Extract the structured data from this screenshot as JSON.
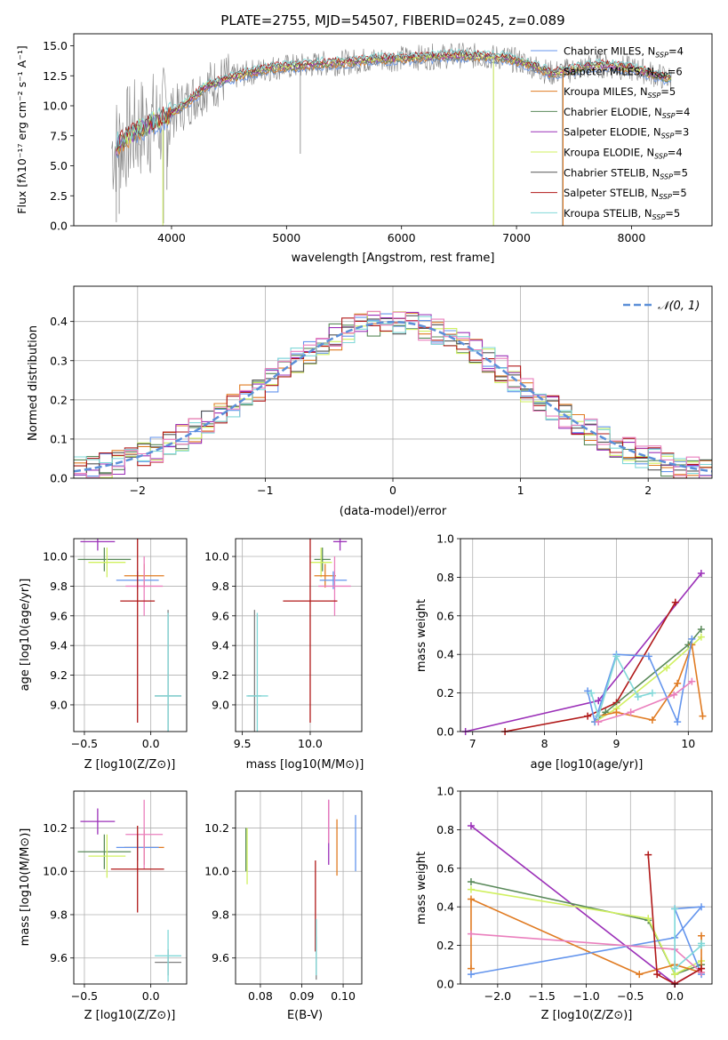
{
  "chart_data": [
    {
      "type": "line",
      "title": "PLATE=2755, MJD=54507, FIBERID=0245, z=0.089",
      "xlabel": "wavelength [Angstrom, rest frame]",
      "ylabel": "Flux [fλ10⁻¹⁷ erg cm⁻² s⁻¹ A⁻¹]",
      "xlim": [
        3150,
        8700
      ],
      "ylim": [
        0,
        16
      ],
      "xticks": [
        4000,
        5000,
        6000,
        7000,
        8000
      ],
      "yticks": [
        0.0,
        2.5,
        5.0,
        7.5,
        10.0,
        12.5,
        15.0
      ],
      "grid": false,
      "legend_position": "right",
      "observed": {
        "color": "#808080",
        "x": [
          3500,
          3700,
          3900,
          4100,
          4300,
          4500,
          4700,
          4900,
          5100,
          5300,
          5500,
          5700,
          5900,
          6100,
          6300,
          6500,
          6700,
          6900,
          7100,
          7300,
          7500,
          7700,
          7900,
          8100,
          8300
        ],
        "values": [
          6.5,
          8.0,
          8.8,
          10.0,
          11.6,
          12.3,
          12.8,
          13.2,
          13.3,
          13.5,
          13.6,
          13.8,
          13.9,
          14.0,
          14.1,
          14.2,
          14.1,
          14.0,
          13.5,
          12.7,
          13.0,
          13.4,
          13.2,
          12.9,
          12.3
        ]
      },
      "series": [
        {
          "name": "Chabrier MILES, N_SSP=4",
          "color": "#6495ed"
        },
        {
          "name": "Salpeter MILES, N_SSP=6",
          "color": "#808080"
        },
        {
          "name": "Kroupa MILES, N_SSP=5",
          "color": "#e07b22"
        },
        {
          "name": "Chabrier ELODIE, N_SSP=4",
          "color": "#5a8a5a"
        },
        {
          "name": "Salpeter ELODIE, N_SSP=3",
          "color": "#9b30b8"
        },
        {
          "name": "Kroupa ELODIE, N_SSP=4",
          "color": "#d0f060"
        },
        {
          "name": "Chabrier STELIB, N_SSP=5",
          "color": "#555555"
        },
        {
          "name": "Salpeter STELIB, N_SSP=5",
          "color": "#b01818"
        },
        {
          "name": "Kroupa STELIB, N_SSP=5",
          "color": "#80d8d8"
        }
      ]
    },
    {
      "type": "line",
      "xlabel": "(data-model)/error",
      "ylabel": "Normed distribution",
      "xlim": [
        -2.5,
        2.5
      ],
      "ylim": [
        0,
        0.49
      ],
      "xticks": [
        -2,
        -1,
        0,
        1,
        2
      ],
      "yticks": [
        0.0,
        0.1,
        0.2,
        0.3,
        0.4
      ],
      "grid": true,
      "legend_position": "top-right",
      "gaussian": {
        "name": "𝒩(0, 1)",
        "color": "#5b8fd8"
      },
      "bin_width": 0.1
    },
    {
      "type": "scatter",
      "xlabel": "Z [log10(Z/Z⊙)]",
      "ylabel": "age  [log10(age/yr)]",
      "xlim": [
        -0.58,
        0.27
      ],
      "ylim": [
        8.82,
        10.12
      ],
      "xticks": [
        -0.5,
        0.0
      ],
      "yticks": [
        9.0,
        9.2,
        9.4,
        9.6,
        9.8,
        10.0
      ],
      "grid": true,
      "points": [
        {
          "color": "#9b30b8",
          "x": -0.4,
          "y": 10.1,
          "xerr": 0.13,
          "yerr": 0.06
        },
        {
          "color": "#5a8a5a",
          "x": -0.35,
          "y": 9.98,
          "xerr": 0.2,
          "yerr": 0.08
        },
        {
          "color": "#d0f060",
          "x": -0.33,
          "y": 9.96,
          "xerr": 0.14,
          "yerr": 0.1
        },
        {
          "color": "#e07b22",
          "x": -0.05,
          "y": 9.87,
          "xerr": 0.15,
          "yerr": 0.08
        },
        {
          "color": "#6495ed",
          "x": -0.1,
          "y": 9.84,
          "xerr": 0.16,
          "yerr": 0.06
        },
        {
          "color": "#ea7fbd",
          "x": -0.05,
          "y": 9.8,
          "xerr": 0.14,
          "yerr": 0.2
        },
        {
          "color": "#b01818",
          "x": -0.1,
          "y": 9.7,
          "xerr": 0.13,
          "yerr": 0.82
        },
        {
          "color": "#808080",
          "x": 0.13,
          "y": 9.06,
          "xerr": 0.1,
          "yerr": 0.58
        },
        {
          "color": "#80d8d8",
          "x": 0.13,
          "y": 9.06,
          "xerr": 0.1,
          "yerr": 0.56
        }
      ]
    },
    {
      "type": "scatter",
      "xlabel": "mass [log10(M/M⊙)]",
      "xlim": [
        9.45,
        10.38
      ],
      "ylim": [
        8.82,
        10.12
      ],
      "xticks": [
        9.5,
        10.0
      ],
      "yticks": [
        9.0,
        9.2,
        9.4,
        9.6,
        9.8,
        10.0
      ],
      "grid": true,
      "points": [
        {
          "color": "#9b30b8",
          "x": 10.22,
          "y": 10.1,
          "xerr": 0.05,
          "yerr": 0.06
        },
        {
          "color": "#5a8a5a",
          "x": 10.09,
          "y": 9.98,
          "xerr": 0.06,
          "yerr": 0.08
        },
        {
          "color": "#d0f060",
          "x": 10.08,
          "y": 9.96,
          "xerr": 0.08,
          "yerr": 0.1
        },
        {
          "color": "#e07b22",
          "x": 10.11,
          "y": 9.87,
          "xerr": 0.08,
          "yerr": 0.08
        },
        {
          "color": "#6495ed",
          "x": 10.17,
          "y": 9.84,
          "xerr": 0.1,
          "yerr": 0.06
        },
        {
          "color": "#ea7fbd",
          "x": 10.18,
          "y": 9.8,
          "xerr": 0.12,
          "yerr": 0.2
        },
        {
          "color": "#b01818",
          "x": 10.0,
          "y": 9.7,
          "xerr": 0.2,
          "yerr": 0.82
        },
        {
          "color": "#808080",
          "x": 9.59,
          "y": 9.06,
          "xerr": 0.05,
          "yerr": 0.58
        },
        {
          "color": "#80d8d8",
          "x": 9.61,
          "y": 9.06,
          "xerr": 0.08,
          "yerr": 0.56
        }
      ]
    },
    {
      "type": "line",
      "xlabel": "age  [log10(age/yr)]",
      "ylabel": "mass weight",
      "xlim": [
        6.83,
        10.33
      ],
      "ylim": [
        0,
        1.0
      ],
      "xticks": [
        7,
        8,
        9,
        10
      ],
      "yticks": [
        0.0,
        0.2,
        0.4,
        0.6,
        0.8,
        1.0
      ],
      "grid": true,
      "series": [
        {
          "color": "#9b30b8",
          "x": [
            6.9,
            8.75,
            10.18
          ],
          "values": [
            0.0,
            0.16,
            0.82
          ]
        },
        {
          "color": "#b01818",
          "x": [
            7.45,
            8.6,
            9.0,
            9.82
          ],
          "values": [
            0.0,
            0.08,
            0.15,
            0.67
          ]
        },
        {
          "color": "#5a8a5a",
          "x": [
            8.7,
            8.85,
            10.0,
            10.18
          ],
          "values": [
            0.05,
            0.1,
            0.45,
            0.53
          ]
        },
        {
          "color": "#d0f060",
          "x": [
            8.7,
            9.0,
            9.7,
            10.18
          ],
          "values": [
            0.05,
            0.12,
            0.33,
            0.49
          ]
        },
        {
          "color": "#e07b22",
          "x": [
            8.75,
            9.0,
            9.5,
            9.85,
            10.05,
            10.2
          ],
          "values": [
            0.08,
            0.1,
            0.06,
            0.25,
            0.45,
            0.08
          ]
        },
        {
          "color": "#6495ed",
          "x": [
            8.6,
            8.7,
            9.0,
            9.45,
            9.85,
            10.05
          ],
          "values": [
            0.21,
            0.05,
            0.4,
            0.39,
            0.05,
            0.48
          ]
        },
        {
          "color": "#ea7fbd",
          "x": [
            8.75,
            9.2,
            9.8,
            10.05
          ],
          "values": [
            0.05,
            0.1,
            0.19,
            0.26
          ]
        },
        {
          "color": "#80d8d8",
          "x": [
            8.65,
            8.75,
            9.0,
            9.3,
            9.5
          ],
          "values": [
            0.2,
            0.08,
            0.39,
            0.18,
            0.2
          ]
        }
      ]
    },
    {
      "type": "scatter",
      "xlabel": "Z [log10(Z/Z⊙)]",
      "ylabel": "mass [log10(M/M⊙)]",
      "xlim": [
        -0.58,
        0.27
      ],
      "ylim": [
        9.48,
        10.37
      ],
      "xticks": [
        -0.5,
        0.0
      ],
      "yticks": [
        9.6,
        9.8,
        10.0,
        10.2
      ],
      "grid": true,
      "points": [
        {
          "color": "#9b30b8",
          "x": -0.4,
          "y": 10.23,
          "xerr": 0.13,
          "yerr": 0.06
        },
        {
          "color": "#5a8a5a",
          "x": -0.35,
          "y": 10.09,
          "xerr": 0.2,
          "yerr": 0.08
        },
        {
          "color": "#d0f060",
          "x": -0.33,
          "y": 10.07,
          "xerr": 0.14,
          "yerr": 0.1
        },
        {
          "color": "#e07b22",
          "x": -0.05,
          "y": 10.11,
          "xerr": 0.15,
          "yerr": 0.08
        },
        {
          "color": "#6495ed",
          "x": -0.1,
          "y": 10.11,
          "xerr": 0.16,
          "yerr": 0.06
        },
        {
          "color": "#ea7fbd",
          "x": -0.05,
          "y": 10.17,
          "xerr": 0.14,
          "yerr": 0.16
        },
        {
          "color": "#b01818",
          "x": -0.1,
          "y": 10.01,
          "xerr": 0.2,
          "yerr": 0.2
        },
        {
          "color": "#808080",
          "x": 0.13,
          "y": 9.58,
          "xerr": 0.1,
          "yerr": 0.06
        },
        {
          "color": "#80d8d8",
          "x": 0.13,
          "y": 9.61,
          "xerr": 0.1,
          "yerr": 0.12
        }
      ]
    },
    {
      "type": "scatter",
      "xlabel": "E(B-V)",
      "xlim": [
        0.074,
        0.1045
      ],
      "ylim": [
        9.48,
        10.37
      ],
      "xticks": [
        0.08,
        0.09,
        0.1
      ],
      "yticks": [
        9.6,
        9.8,
        10.0,
        10.2
      ],
      "grid": true,
      "points": [
        {
          "color": "#9b30b8",
          "x": 0.0965,
          "y": 10.18,
          "xerr": 0.0,
          "yerr": 0.15
        },
        {
          "color": "#5a8a5a",
          "x": 0.0765,
          "y": 10.1,
          "xerr": 0.0,
          "yerr": 0.1
        },
        {
          "color": "#d0f060",
          "x": 0.0768,
          "y": 10.07,
          "xerr": 0.0,
          "yerr": 0.13
        },
        {
          "color": "#e07b22",
          "x": 0.0985,
          "y": 10.11,
          "xerr": 0.0,
          "yerr": 0.13
        },
        {
          "color": "#6495ed",
          "x": 0.103,
          "y": 10.13,
          "xerr": 0.0,
          "yerr": 0.13
        },
        {
          "color": "#ea7fbd",
          "x": 0.0965,
          "y": 10.23,
          "xerr": 0.0,
          "yerr": 0.1
        },
        {
          "color": "#b01818",
          "x": 0.0933,
          "y": 9.84,
          "xerr": 0.0,
          "yerr": 0.21
        },
        {
          "color": "#808080",
          "x": 0.0935,
          "y": 9.6,
          "xerr": 0.0,
          "yerr": 0.1
        },
        {
          "color": "#80d8d8",
          "x": 0.0935,
          "y": 9.65,
          "xerr": 0.0,
          "yerr": 0.13
        }
      ]
    },
    {
      "type": "line",
      "xlabel": "Z [log10(Z/Z⊙)]",
      "ylabel": "mass weight",
      "xlim": [
        -2.42,
        0.42
      ],
      "ylim": [
        0,
        1.0
      ],
      "xticks": [
        -2.0,
        -1.5,
        -1.0,
        -0.5,
        0.0
      ],
      "yticks": [
        0.0,
        0.2,
        0.4,
        0.6,
        0.8,
        1.0
      ],
      "grid": true,
      "series": [
        {
          "color": "#9b30b8",
          "x": [
            -2.3,
            0.0,
            0.3
          ],
          "values": [
            0.82,
            0.0,
            0.08
          ]
        },
        {
          "color": "#5a8a5a",
          "x": [
            -2.3,
            -0.3,
            0.0,
            0.3
          ],
          "values": [
            0.53,
            0.33,
            0.05,
            0.1
          ]
        },
        {
          "color": "#d0f060",
          "x": [
            -2.3,
            -0.3,
            0.0,
            0.3
          ],
          "values": [
            0.49,
            0.34,
            0.05,
            0.12
          ]
        },
        {
          "color": "#e07b22",
          "x": [
            -2.3,
            -2.3,
            -0.4,
            0.0,
            0.3,
            0.3
          ],
          "values": [
            0.08,
            0.44,
            0.05,
            0.1,
            0.06,
            0.25
          ]
        },
        {
          "color": "#6495ed",
          "x": [
            -2.3,
            0.0,
            0.3,
            0.0,
            0.3
          ],
          "values": [
            0.05,
            0.24,
            0.4,
            0.39,
            0.05
          ]
        },
        {
          "color": "#ea7fbd",
          "x": [
            -2.3,
            0.0,
            0.3
          ],
          "values": [
            0.26,
            0.18,
            0.06
          ]
        },
        {
          "color": "#b01818",
          "x": [
            -0.3,
            -0.2,
            0.0,
            0.3
          ],
          "values": [
            0.67,
            0.05,
            0.0,
            0.08
          ]
        },
        {
          "color": "#80d8d8",
          "x": [
            0.0,
            0.0,
            0.3,
            0.3
          ],
          "values": [
            0.39,
            0.08,
            0.2,
            0.21
          ]
        }
      ]
    }
  ]
}
